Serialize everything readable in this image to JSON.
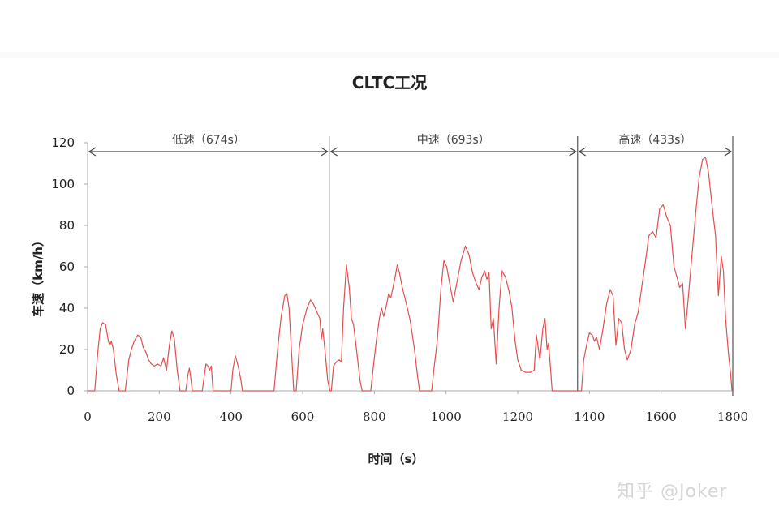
{
  "chart_data": {
    "type": "line",
    "title": "CLTC工况",
    "xlabel": "时间（s）",
    "ylabel": "车速（km/h）",
    "xlim": [
      0,
      1800
    ],
    "ylim": [
      0,
      120
    ],
    "x_ticks": [
      "0",
      "200",
      "400",
      "600",
      "800",
      "1000",
      "1200",
      "1400",
      "1600",
      "1800"
    ],
    "y_ticks": [
      "0",
      "20",
      "40",
      "60",
      "80",
      "100",
      "120"
    ],
    "grid": false,
    "legend": null,
    "line_color": "#e05050",
    "segments": [
      {
        "label": "低速（674s）",
        "start": 0,
        "end": 674
      },
      {
        "label": "中速（693s）",
        "start": 674,
        "end": 1367
      },
      {
        "label": "高速（433s）",
        "start": 1367,
        "end": 1800
      }
    ],
    "series": [
      {
        "name": "车速",
        "points": [
          [
            0,
            0
          ],
          [
            20,
            0
          ],
          [
            28,
            18
          ],
          [
            35,
            30
          ],
          [
            42,
            33
          ],
          [
            50,
            32
          ],
          [
            58,
            24
          ],
          [
            62,
            22
          ],
          [
            66,
            24
          ],
          [
            72,
            20
          ],
          [
            80,
            8
          ],
          [
            88,
            0
          ],
          [
            105,
            0
          ],
          [
            115,
            15
          ],
          [
            122,
            20
          ],
          [
            130,
            24
          ],
          [
            140,
            27
          ],
          [
            148,
            26
          ],
          [
            155,
            21
          ],
          [
            162,
            19
          ],
          [
            170,
            15
          ],
          [
            178,
            13
          ],
          [
            186,
            12
          ],
          [
            195,
            13
          ],
          [
            205,
            12
          ],
          [
            212,
            16
          ],
          [
            220,
            10
          ],
          [
            228,
            22
          ],
          [
            235,
            29
          ],
          [
            242,
            25
          ],
          [
            250,
            10
          ],
          [
            258,
            0
          ],
          [
            274,
            0
          ],
          [
            280,
            8
          ],
          [
            284,
            11
          ],
          [
            288,
            6
          ],
          [
            292,
            0
          ],
          [
            320,
            0
          ],
          [
            326,
            8
          ],
          [
            330,
            13
          ],
          [
            336,
            12
          ],
          [
            340,
            10
          ],
          [
            345,
            12
          ],
          [
            350,
            0
          ],
          [
            400,
            0
          ],
          [
            405,
            10
          ],
          [
            412,
            17
          ],
          [
            420,
            12
          ],
          [
            428,
            5
          ],
          [
            432,
            0
          ],
          [
            520,
            0
          ],
          [
            530,
            20
          ],
          [
            540,
            36
          ],
          [
            550,
            46
          ],
          [
            556,
            47
          ],
          [
            562,
            40
          ],
          [
            570,
            15
          ],
          [
            575,
            0
          ],
          [
            582,
            0
          ],
          [
            590,
            20
          ],
          [
            600,
            32
          ],
          [
            612,
            40
          ],
          [
            622,
            44
          ],
          [
            630,
            42
          ],
          [
            640,
            38
          ],
          [
            648,
            35
          ],
          [
            652,
            25
          ],
          [
            656,
            30
          ],
          [
            662,
            20
          ],
          [
            670,
            5
          ],
          [
            676,
            0
          ],
          [
            680,
            0
          ],
          [
            686,
            12
          ],
          [
            694,
            14
          ],
          [
            702,
            15
          ],
          [
            708,
            14
          ],
          [
            714,
            40
          ],
          [
            722,
            61
          ],
          [
            730,
            50
          ],
          [
            736,
            35
          ],
          [
            742,
            32
          ],
          [
            750,
            20
          ],
          [
            760,
            5
          ],
          [
            766,
            0
          ],
          [
            790,
            0
          ],
          [
            796,
            10
          ],
          [
            806,
            25
          ],
          [
            814,
            35
          ],
          [
            820,
            40
          ],
          [
            826,
            36
          ],
          [
            832,
            40
          ],
          [
            840,
            47
          ],
          [
            846,
            45
          ],
          [
            852,
            50
          ],
          [
            858,
            55
          ],
          [
            864,
            61
          ],
          [
            870,
            57
          ],
          [
            878,
            50
          ],
          [
            888,
            43
          ],
          [
            900,
            34
          ],
          [
            912,
            20
          ],
          [
            920,
            8
          ],
          [
            926,
            0
          ],
          [
            960,
            0
          ],
          [
            966,
            10
          ],
          [
            976,
            25
          ],
          [
            986,
            50
          ],
          [
            994,
            63
          ],
          [
            1002,
            60
          ],
          [
            1010,
            52
          ],
          [
            1020,
            43
          ],
          [
            1030,
            52
          ],
          [
            1042,
            63
          ],
          [
            1054,
            70
          ],
          [
            1064,
            66
          ],
          [
            1074,
            57
          ],
          [
            1084,
            52
          ],
          [
            1092,
            49
          ],
          [
            1100,
            55
          ],
          [
            1108,
            58
          ],
          [
            1114,
            54
          ],
          [
            1120,
            57
          ],
          [
            1126,
            30
          ],
          [
            1132,
            35
          ],
          [
            1140,
            13
          ],
          [
            1148,
            40
          ],
          [
            1156,
            58
          ],
          [
            1166,
            55
          ],
          [
            1176,
            48
          ],
          [
            1184,
            40
          ],
          [
            1192,
            25
          ],
          [
            1200,
            15
          ],
          [
            1210,
            10
          ],
          [
            1222,
            9
          ],
          [
            1236,
            9
          ],
          [
            1246,
            10
          ],
          [
            1252,
            27
          ],
          [
            1258,
            20
          ],
          [
            1262,
            15
          ],
          [
            1270,
            30
          ],
          [
            1276,
            35
          ],
          [
            1282,
            20
          ],
          [
            1286,
            23
          ],
          [
            1292,
            10
          ],
          [
            1296,
            0
          ],
          [
            1378,
            0
          ],
          [
            1384,
            15
          ],
          [
            1392,
            22
          ],
          [
            1400,
            28
          ],
          [
            1408,
            27
          ],
          [
            1414,
            24
          ],
          [
            1420,
            26
          ],
          [
            1428,
            20
          ],
          [
            1438,
            30
          ],
          [
            1448,
            42
          ],
          [
            1458,
            49
          ],
          [
            1466,
            46
          ],
          [
            1474,
            22
          ],
          [
            1482,
            35
          ],
          [
            1490,
            33
          ],
          [
            1498,
            20
          ],
          [
            1506,
            15
          ],
          [
            1516,
            20
          ],
          [
            1526,
            32
          ],
          [
            1536,
            38
          ],
          [
            1546,
            50
          ],
          [
            1556,
            62
          ],
          [
            1566,
            75
          ],
          [
            1576,
            77
          ],
          [
            1586,
            74
          ],
          [
            1596,
            88
          ],
          [
            1606,
            90
          ],
          [
            1616,
            84
          ],
          [
            1626,
            80
          ],
          [
            1636,
            60
          ],
          [
            1646,
            54
          ],
          [
            1652,
            50
          ],
          [
            1660,
            52
          ],
          [
            1668,
            30
          ],
          [
            1676,
            45
          ],
          [
            1686,
            65
          ],
          [
            1696,
            85
          ],
          [
            1706,
            103
          ],
          [
            1716,
            112
          ],
          [
            1724,
            113
          ],
          [
            1732,
            106
          ],
          [
            1742,
            90
          ],
          [
            1752,
            75
          ],
          [
            1760,
            46
          ],
          [
            1768,
            65
          ],
          [
            1774,
            58
          ],
          [
            1780,
            35
          ],
          [
            1788,
            18
          ],
          [
            1794,
            8
          ],
          [
            1798,
            0
          ]
        ]
      }
    ]
  },
  "watermark": "知乎 @Joker"
}
